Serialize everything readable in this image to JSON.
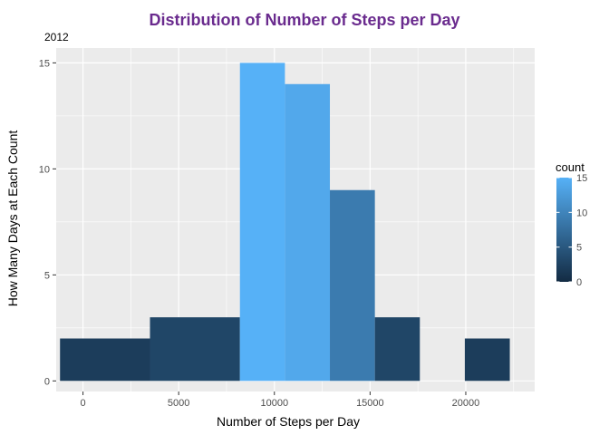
{
  "chart_data": {
    "type": "bar",
    "title": "Distribution of Number of Steps per Day",
    "subtitle": "2012",
    "xlabel": "Number of Steps per Day",
    "ylabel": "How Many Days at Each Count",
    "xlim": [
      -1400,
      23600
    ],
    "ylim": [
      -0.5,
      15.7
    ],
    "x_ticks": [
      0,
      5000,
      10000,
      15000,
      20000
    ],
    "y_ticks": [
      0,
      5,
      10,
      15
    ],
    "bins": [
      {
        "x0": -1200,
        "x1": 3500,
        "count": 2
      },
      {
        "x0": 3500,
        "x1": 8200,
        "count": 3
      },
      {
        "x0": 8200,
        "x1": 10550,
        "count": 15
      },
      {
        "x0": 10550,
        "x1": 12900,
        "count": 14
      },
      {
        "x0": 12900,
        "x1": 15250,
        "count": 9
      },
      {
        "x0": 15250,
        "x1": 17600,
        "count": 3
      },
      {
        "x0": 17600,
        "x1": 19950,
        "count": 0
      },
      {
        "x0": 19950,
        "x1": 22300,
        "count": 2
      }
    ],
    "grid": true,
    "legend": {
      "title": "count",
      "placement": "right",
      "ticks": [
        0,
        5,
        10,
        15
      ],
      "range": [
        0,
        15
      ],
      "low_color": "#132B43",
      "high_color": "#56B1F7"
    },
    "colors": {
      "title": "#6A2B8E",
      "panel": "#EBEBEB",
      "grid": "#FFFFFF",
      "axis_text": "#4D4D4D"
    }
  }
}
